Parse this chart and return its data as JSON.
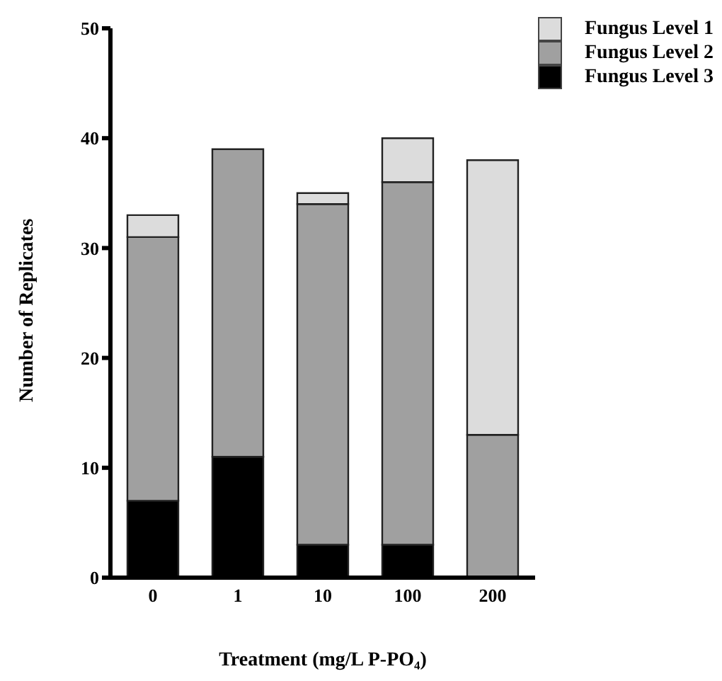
{
  "chart_data": {
    "type": "bar",
    "stacked": true,
    "xlabel": "Treatment (mg/L P-PO₄)",
    "ylabel": "Number of Replicates",
    "categories": [
      "0",
      "1",
      "10",
      "100",
      "200"
    ],
    "series": [
      {
        "name": "Fungus Level 3",
        "color": "#000000",
        "values": [
          7,
          11,
          3,
          3,
          0
        ]
      },
      {
        "name": "Fungus Level 2",
        "color": "#a0a0a0",
        "values": [
          24,
          28,
          31,
          33,
          13
        ]
      },
      {
        "name": "Fungus Level 1",
        "color": "#dcdcdc",
        "values": [
          2,
          0,
          1,
          4,
          25
        ]
      }
    ],
    "ylim": [
      0,
      50
    ],
    "yticks": [
      0,
      10,
      20,
      30,
      40,
      50
    ],
    "grid": false,
    "legend": "top right"
  }
}
